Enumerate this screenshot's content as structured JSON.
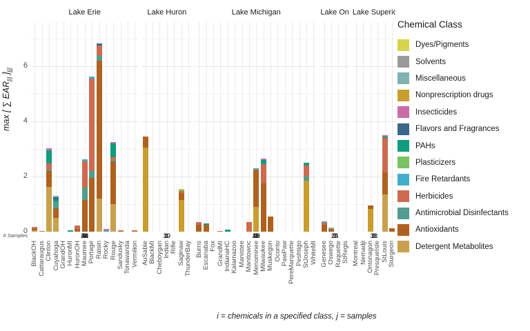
{
  "labels": {
    "legend_title": "Chemical Class",
    "caption": "i = chemicals in a specified class, j = samples",
    "samples_label": "# Samples",
    "y_label": {
      "pre": "max",
      "open": " [ ",
      "sigma": "∑",
      "ear": " EAR",
      "sub_i": "[i]",
      "close": " ]",
      "sub_j": "[j]"
    }
  },
  "chart_data": {
    "type": "bar",
    "stacked": true,
    "grid": true,
    "legend_position": "right",
    "ylabel": "max [ sum EAR[i] ][j]",
    "y_axis": {
      "ticks": [
        0,
        2,
        4,
        6
      ],
      "minor_ticks": [
        1,
        3,
        5,
        7
      ],
      "ylim": [
        0,
        7.6
      ]
    },
    "classes": [
      {
        "name": "Dyes/Pigments",
        "color": "#d8d34c"
      },
      {
        "name": "Solvents",
        "color": "#9a9a9a"
      },
      {
        "name": "Miscellaneous",
        "color": "#7fb3b0"
      },
      {
        "name": "Nonprescription drugs",
        "color": "#c99e2e"
      },
      {
        "name": "Insecticides",
        "color": "#cb6ca8"
      },
      {
        "name": "Flavors and Fragrances",
        "color": "#39688c"
      },
      {
        "name": "PAHs",
        "color": "#0f9d7d"
      },
      {
        "name": "Plasticizers",
        "color": "#79c360"
      },
      {
        "name": "Fire Retardants",
        "color": "#41aecb"
      },
      {
        "name": "Herbicides",
        "color": "#cd6a4f"
      },
      {
        "name": "Antimicrobial Disinfectants",
        "color": "#4f9e90"
      },
      {
        "name": "Antioxidants",
        "color": "#b0611f"
      },
      {
        "name": "Detergent Metabolites",
        "color": "#c9a14e"
      }
    ],
    "facets": [
      {
        "name": "Lake Erie",
        "sites": [
          {
            "label": "BlackOH",
            "samples": 2,
            "segments": [
              [
                "Detergent Metabolites",
                0.05
              ],
              [
                "Antioxidants",
                0.04
              ],
              [
                "Herbicides",
                0.06
              ],
              [
                "Solvents",
                0.03
              ]
            ]
          },
          {
            "label": "Cattaraugus",
            "samples": 14,
            "segments": [
              [
                "Herbicides",
                0.03
              ]
            ]
          },
          {
            "label": "Clinton",
            "samples": 32,
            "segments": [
              [
                "Detergent Metabolites",
                1.62
              ],
              [
                "Antioxidants",
                0.58
              ],
              [
                "Antimicrobial Disinfectants",
                0.06
              ],
              [
                "Herbicides",
                0.22
              ],
              [
                "PAHs",
                0.48
              ],
              [
                "Insecticides",
                0.07
              ]
            ]
          },
          {
            "label": "Cuyahoga",
            "samples": 8,
            "segments": [
              [
                "Detergent Metabolites",
                0.5
              ],
              [
                "Antioxidants",
                0.34
              ],
              [
                "Antimicrobial Disinfectants",
                0.26
              ],
              [
                "PAHs",
                0.08
              ],
              [
                "Flavors and Fragrances",
                0.06
              ],
              [
                "Miscellaneous",
                0.05
              ]
            ]
          },
          {
            "label": "GrandOH",
            "samples": 2,
            "segments": []
          },
          {
            "label": "HuronMI",
            "samples": 2,
            "segments": [
              [
                "PAHs",
                0.04
              ]
            ]
          },
          {
            "label": "HuronOH",
            "samples": 2,
            "segments": [
              [
                "Antioxidants",
                0.1
              ],
              [
                "Herbicides",
                0.12
              ]
            ]
          },
          {
            "label": "Maumee",
            "samples": 6,
            "segments": [
              [
                "Antioxidants",
                1.15
              ],
              [
                "Antimicrobial Disinfectants",
                0.45
              ],
              [
                "Herbicides",
                0.95
              ],
              [
                "Fire Retardants",
                0.07
              ]
            ]
          },
          {
            "label": "Portage",
            "samples": 46,
            "segments": [
              [
                "Antioxidants",
                1.95
              ],
              [
                "Antimicrobial Disinfectants",
                0.25
              ],
              [
                "Herbicides",
                3.35
              ],
              [
                "Fire Retardants",
                0.07
              ]
            ]
          },
          {
            "label": "Raisin",
            "samples": 34,
            "segments": [
              [
                "Detergent Metabolites",
                1.2
              ],
              [
                "Antioxidants",
                5.0
              ],
              [
                "Antimicrobial Disinfectants",
                0.18
              ],
              [
                "Herbicides",
                0.38
              ],
              [
                "Flavors and Fragrances",
                0.06
              ]
            ]
          },
          {
            "label": "Rocky",
            "samples": 42,
            "segments": [
              [
                "Fire Retardants",
                0.06
              ],
              [
                "Insecticides",
                0.03
              ]
            ]
          },
          {
            "label": "Rouge",
            "samples": 43,
            "segments": [
              [
                "Detergent Metabolites",
                1.0
              ],
              [
                "Antioxidants",
                1.55
              ],
              [
                "Antimicrobial Disinfectants",
                0.06
              ],
              [
                "Herbicides",
                0.08
              ],
              [
                "PAHs",
                0.5
              ],
              [
                "Insecticides",
                0.05
              ]
            ]
          },
          {
            "label": "Sandusky",
            "samples": 2,
            "segments": [
              [
                "Herbicides",
                0.05
              ]
            ]
          },
          {
            "label": "Tonawanda",
            "samples": 1,
            "segments": []
          },
          {
            "label": "Vermilion",
            "samples": 2,
            "segments": [
              [
                "Herbicides",
                0.06
              ]
            ]
          }
        ]
      },
      {
        "name": "Lake Huron",
        "sites": [
          {
            "label": "AuSable",
            "samples": 19,
            "segments": [
              [
                "Nonprescription drugs",
                3.05
              ],
              [
                "Antioxidants",
                0.4
              ]
            ]
          },
          {
            "label": "BlackMI",
            "samples": 1,
            "segments": []
          },
          {
            "label": "Cheboygan",
            "samples": 1,
            "segments": []
          },
          {
            "label": "Indian",
            "samples": 1,
            "segments": []
          },
          {
            "label": "Rifle",
            "samples": 1,
            "segments": []
          },
          {
            "label": "Saginaw",
            "samples": 30,
            "segments": [
              [
                "Nonprescription drugs",
                1.15
              ],
              [
                "Antioxidants",
                0.25
              ],
              [
                "Herbicides",
                0.08
              ],
              [
                "Plasticizers",
                0.04
              ],
              [
                "Dyes/Pigments",
                0.04
              ]
            ]
          },
          {
            "label": "ThunderBay",
            "samples": 1,
            "segments": []
          }
        ]
      },
      {
        "name": "Lake Michigan",
        "sites": [
          {
            "label": "Burns",
            "samples": 3,
            "segments": [
              [
                "Antioxidants",
                0.25
              ],
              [
                "Herbicides",
                0.08
              ],
              [
                "Insecticides",
                0.03
              ]
            ]
          },
          {
            "label": "Escanaba",
            "samples": 11,
            "segments": [
              [
                "Antioxidants",
                0.25
              ],
              [
                "PAHs",
                0.05
              ]
            ]
          },
          {
            "label": "Fox",
            "samples": 7,
            "segments": []
          },
          {
            "label": "GrandMI",
            "samples": 1,
            "segments": [
              [
                "Herbicides",
                0.03
              ]
            ]
          },
          {
            "label": "IndianaHC",
            "samples": 2,
            "segments": [
              [
                "PAHs",
                0.08
              ]
            ]
          },
          {
            "label": "Kalamazoo",
            "samples": 1,
            "segments": []
          },
          {
            "label": "Manistee",
            "samples": 1,
            "segments": []
          },
          {
            "label": "Manitowoc",
            "samples": 13,
            "segments": [
              [
                "Herbicides",
                0.35
              ]
            ]
          },
          {
            "label": "Menominee",
            "samples": 7,
            "segments": [
              [
                "Nonprescription drugs",
                0.9
              ],
              [
                "Antioxidants",
                1.35
              ],
              [
                "Fire Retardants",
                0.05
              ]
            ]
          },
          {
            "label": "Milwaukee",
            "samples": 40,
            "segments": [
              [
                "Antioxidants",
                1.75
              ],
              [
                "Herbicides",
                0.7
              ],
              [
                "PAHs",
                0.15
              ],
              [
                "Insecticides",
                0.05
              ]
            ]
          },
          {
            "label": "Muskegon",
            "samples": 45,
            "segments": [
              [
                "Antioxidants",
                0.55
              ]
            ]
          },
          {
            "label": "Oconto",
            "samples": 1,
            "segments": []
          },
          {
            "label": "PawPaw",
            "samples": 1,
            "segments": []
          },
          {
            "label": "PereMarquette",
            "samples": 1,
            "segments": []
          },
          {
            "label": "Peshtigo",
            "samples": 1,
            "segments": []
          },
          {
            "label": "StJoseph",
            "samples": 25,
            "segments": [
              [
                "Nonprescription drugs",
                1.85
              ],
              [
                "Antimicrobial Disinfectants",
                0.15
              ],
              [
                "Herbicides",
                0.4
              ],
              [
                "PAHs",
                0.1
              ]
            ]
          },
          {
            "label": "WhiteMI",
            "samples": 1,
            "segments": []
          }
        ]
      },
      {
        "name": "Lake Ontario",
        "sites": [
          {
            "label": "Genesee",
            "samples": 14,
            "segments": [
              [
                "Antioxidants",
                0.25
              ],
              [
                "Herbicides",
                0.08
              ],
              [
                "Fire Retardants",
                0.04
              ]
            ]
          },
          {
            "label": "Oswego",
            "samples": 25,
            "segments": [
              [
                "Antioxidants",
                0.1
              ],
              [
                "Miscellaneous",
                0.05
              ]
            ]
          },
          {
            "label": "Raquette",
            "samples": 1,
            "segments": []
          },
          {
            "label": "StRegis",
            "samples": 7,
            "segments": []
          }
        ]
      },
      {
        "name": "Lake Superior",
        "sites": [
          {
            "label": "Montreal",
            "samples": 1,
            "segments": []
          },
          {
            "label": "Nemadji",
            "samples": 1,
            "segments": []
          },
          {
            "label": "Ontonagon",
            "samples": 18,
            "segments": [
              [
                "Nonprescription drugs",
                0.82
              ],
              [
                "Antioxidants",
                0.13
              ]
            ]
          },
          {
            "label": "PresqueIsle",
            "samples": 1,
            "segments": []
          },
          {
            "label": "StLouis",
            "samples": 31,
            "segments": [
              [
                "Detergent Metabolites",
                1.35
              ],
              [
                "Antioxidants",
                0.8
              ],
              [
                "Herbicides",
                1.25
              ],
              [
                "PAHs",
                0.05
              ],
              [
                "Insecticides",
                0.05
              ]
            ]
          },
          {
            "label": "Sturgeon",
            "samples": 1,
            "segments": [
              [
                "Antioxidants",
                0.12
              ]
            ]
          }
        ]
      }
    ]
  }
}
